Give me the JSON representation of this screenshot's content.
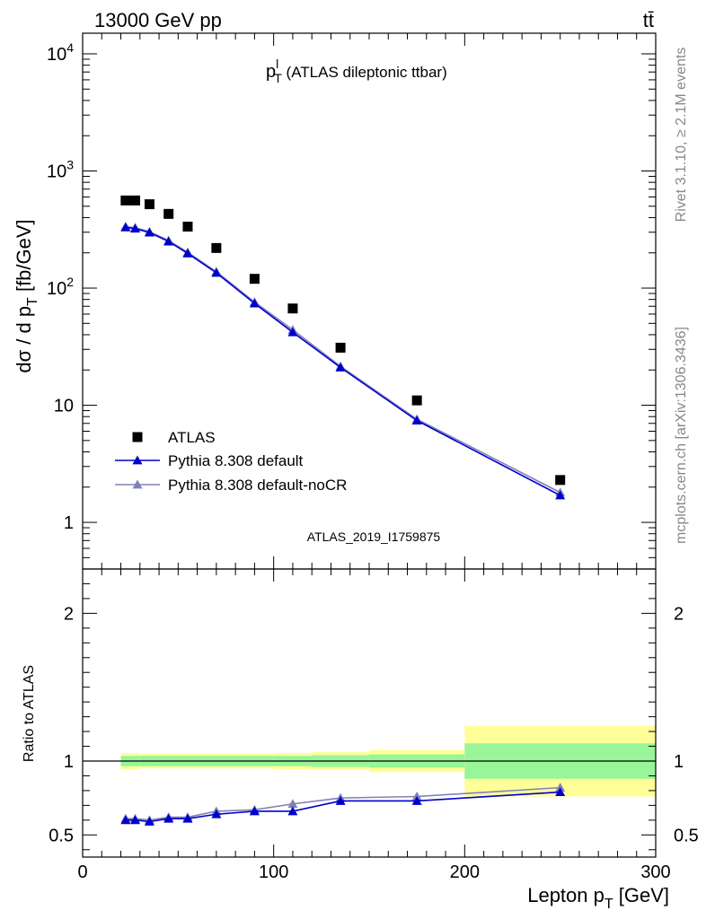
{
  "header": {
    "energy": "13000 GeV pp",
    "process": "tt̄"
  },
  "side_notes": {
    "rivet": "Rivet 3.1.10, ≥ 2.1M events",
    "source": "mcplots.cern.ch [arXiv:1306.3436]"
  },
  "colors": {
    "data": "#000000",
    "default": "#0000cc",
    "noCR": "#8080b8",
    "band_inner": "#98f598",
    "band_outer": "#ffff99"
  },
  "chart_data": [
    {
      "type": "scatter",
      "panel": "main",
      "title_main": "p",
      "title_sup": "l",
      "title_sub": "T",
      "title_rest": " (ATLAS dileptonic ttbar)",
      "analysis_tag": "ATLAS_2019_I1759875",
      "ylabel_main": "dσ / d p",
      "ylabel_sub": "T",
      "ylabel_unit": " [fb/GeV]",
      "yscale": "log",
      "xlim": [
        0,
        300
      ],
      "ylim": [
        0.4,
        15000
      ],
      "y_tick_labels": [
        "1",
        "10",
        "10²",
        "10³",
        "10⁴"
      ],
      "legend_placement": "bottom-left",
      "series": [
        {
          "name": "ATLAS",
          "marker": "square",
          "x": [
            22.5,
            27.5,
            35,
            45,
            55,
            70,
            90,
            110,
            135,
            175,
            250
          ],
          "y": [
            560,
            560,
            520,
            430,
            335,
            220,
            120,
            67,
            31,
            11,
            2.3
          ]
        },
        {
          "name": "Pythia 8.308 default",
          "marker": "triangle",
          "x": [
            22.5,
            27.5,
            35,
            45,
            55,
            70,
            90,
            110,
            135,
            175,
            250
          ],
          "y": [
            330,
            322,
            298,
            250,
            198,
            135,
            74,
            42,
            21,
            7.4,
            1.7
          ]
        },
        {
          "name": "Pythia 8.308 default-noCR",
          "marker": "triangle",
          "x": [
            22.5,
            27.5,
            35,
            45,
            55,
            70,
            90,
            110,
            135,
            175,
            250
          ],
          "y": [
            335,
            328,
            303,
            255,
            202,
            138,
            76,
            44,
            21.5,
            7.6,
            1.8
          ]
        }
      ]
    },
    {
      "type": "line",
      "panel": "ratio",
      "ylabel": "Ratio to ATLAS",
      "xlabel_main": "Lepton p",
      "xlabel_sub": "T",
      "xlabel_unit": " [GeV]",
      "xlim": [
        0,
        300
      ],
      "ylim": [
        0.35,
        2.3
      ],
      "x_ticks": [
        0,
        100,
        200,
        300
      ],
      "y_tick_labels": [
        "0.5",
        "1",
        "2"
      ],
      "uncertainty_bands": [
        {
          "x0": 20,
          "x1": 25,
          "inner": 0.035,
          "outer": 0.055
        },
        {
          "x0": 25,
          "x1": 30,
          "inner": 0.035,
          "outer": 0.055
        },
        {
          "x0": 30,
          "x1": 40,
          "inner": 0.035,
          "outer": 0.05
        },
        {
          "x0": 40,
          "x1": 50,
          "inner": 0.035,
          "outer": 0.05
        },
        {
          "x0": 50,
          "x1": 60,
          "inner": 0.035,
          "outer": 0.05
        },
        {
          "x0": 60,
          "x1": 80,
          "inner": 0.035,
          "outer": 0.05
        },
        {
          "x0": 80,
          "x1": 100,
          "inner": 0.035,
          "outer": 0.05
        },
        {
          "x0": 100,
          "x1": 120,
          "inner": 0.035,
          "outer": 0.055
        },
        {
          "x0": 120,
          "x1": 150,
          "inner": 0.04,
          "outer": 0.06
        },
        {
          "x0": 150,
          "x1": 200,
          "inner": 0.045,
          "outer": 0.075
        },
        {
          "x0": 200,
          "x1": 300,
          "inner": 0.12,
          "outer": 0.24
        }
      ],
      "series": [
        {
          "name": "Pythia 8.308 default",
          "x": [
            22.5,
            27.5,
            35,
            45,
            55,
            70,
            90,
            110,
            135,
            175,
            250
          ],
          "y": [
            0.6,
            0.6,
            0.59,
            0.61,
            0.61,
            0.64,
            0.66,
            0.66,
            0.73,
            0.73,
            0.79
          ]
        },
        {
          "name": "Pythia 8.308 default-noCR",
          "x": [
            22.5,
            27.5,
            35,
            45,
            55,
            70,
            90,
            110,
            135,
            175,
            250
          ],
          "y": [
            0.61,
            0.61,
            0.6,
            0.62,
            0.62,
            0.66,
            0.67,
            0.71,
            0.75,
            0.76,
            0.82
          ]
        }
      ]
    }
  ]
}
